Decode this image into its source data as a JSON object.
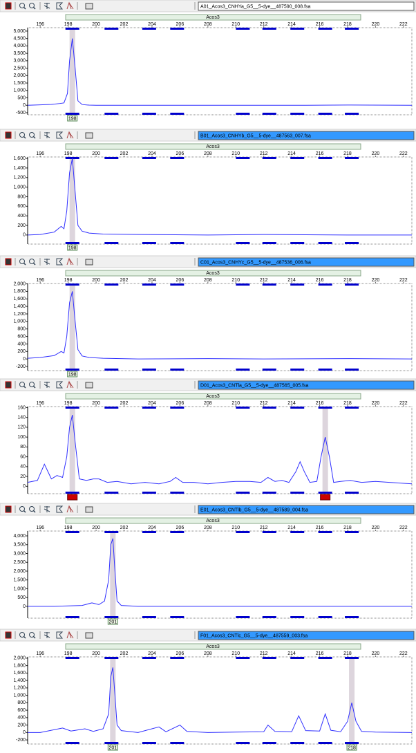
{
  "bins": [
    198.3,
    201.1,
    203.8,
    205.8,
    210.5,
    212.4,
    214.4,
    216.4,
    218.3
  ],
  "chart_data": [
    {
      "type": "line",
      "title": "A01_Acos3_CNHYa_G5__5-dye__487590_008.fsa",
      "selected": false,
      "marker": "Acos3",
      "color": "#2f2fff",
      "x": [
        195.1,
        196,
        196.8,
        197.4,
        197.7,
        197.95,
        198.1,
        198.3,
        198.5,
        198.7,
        199,
        199.5,
        200,
        205,
        210,
        215,
        218,
        222.6
      ],
      "values": [
        0,
        30,
        60,
        120,
        160,
        800,
        3000,
        4500,
        2500,
        300,
        50,
        10,
        0,
        0,
        0,
        0,
        20,
        0
      ],
      "xlim": [
        195.1,
        222.6
      ],
      "xticks": [
        196,
        198,
        200,
        202,
        204,
        206,
        208,
        210,
        212,
        214,
        216,
        218,
        220,
        222
      ],
      "ylim": [
        -640,
        5230
      ],
      "yticks": [
        {
          "value": 5000,
          "label": "5,000"
        },
        {
          "value": 4500,
          "label": "4,500"
        },
        {
          "value": 4000,
          "label": "4,000"
        },
        {
          "value": 3500,
          "label": "3,500"
        },
        {
          "value": 3000,
          "label": "3,000"
        },
        {
          "value": 2500,
          "label": "2,500"
        },
        {
          "value": 2000,
          "label": "2,000"
        },
        {
          "value": 1500,
          "label": "1,500"
        },
        {
          "value": 1000,
          "label": "1,000"
        },
        500,
        0,
        -500
      ],
      "alleles": [
        {
          "label": "198",
          "x": 198.3
        }
      ]
    },
    {
      "type": "line",
      "title": "B01_Acos3_CNHYb_G5__5-dye__487563_007.fsa",
      "selected": true,
      "marker": "Acos3",
      "color": "#2f2fff",
      "x": [
        195.1,
        196,
        197,
        197.5,
        197.7,
        197.9,
        198.1,
        198.3,
        198.5,
        198.7,
        199,
        199.5,
        200.5,
        203,
        208,
        212,
        218,
        222.6
      ],
      "values": [
        0,
        10,
        60,
        180,
        130,
        500,
        1300,
        1600,
        900,
        200,
        80,
        40,
        20,
        10,
        0,
        10,
        0,
        0
      ],
      "xlim": [
        195.1,
        222.6
      ],
      "xticks": [
        196,
        198,
        200,
        202,
        204,
        206,
        208,
        210,
        212,
        214,
        216,
        218,
        220,
        222
      ],
      "ylim": [
        -190,
        1630
      ],
      "yticks": [
        {
          "value": 1600,
          "label": "1,600"
        },
        {
          "value": 1400,
          "label": "1,400"
        },
        {
          "value": 1200,
          "label": "1,200"
        },
        {
          "value": 1000,
          "label": "1,000"
        },
        800,
        600,
        400,
        200,
        0
      ],
      "alleles": [
        {
          "label": "198",
          "x": 198.3
        }
      ]
    },
    {
      "type": "line",
      "title": "C01_Acos3_CNHYc_G5__5-dye__487536_006.fsa",
      "selected": true,
      "marker": "Acos3",
      "color": "#2f2fff",
      "x": [
        195.1,
        196,
        197,
        197.5,
        197.7,
        197.9,
        198.1,
        198.3,
        198.5,
        198.7,
        199,
        199.5,
        200.5,
        203,
        208,
        212,
        218,
        222.6
      ],
      "values": [
        20,
        40,
        90,
        200,
        160,
        600,
        1500,
        1800,
        1000,
        250,
        80,
        40,
        20,
        0,
        10,
        0,
        10,
        0
      ],
      "xlim": [
        195.1,
        222.6
      ],
      "xticks": [
        196,
        198,
        200,
        202,
        204,
        206,
        208,
        210,
        212,
        214,
        216,
        218,
        220,
        222
      ],
      "ylim": [
        -310,
        2010
      ],
      "yticks": [
        {
          "value": 2000,
          "label": "2,000"
        },
        {
          "value": 1800,
          "label": "1,800"
        },
        {
          "value": 1600,
          "label": "1,600"
        },
        {
          "value": 1400,
          "label": "1,400"
        },
        {
          "value": 1200,
          "label": "1,200"
        },
        {
          "value": 1000,
          "label": "1,000"
        },
        800,
        600,
        400,
        200,
        0,
        -200
      ],
      "alleles": [
        {
          "label": "198",
          "x": 198.3
        }
      ]
    },
    {
      "type": "line",
      "title": "D01_Acos3_CNTla_G5__5-dye__487565_005.fsa",
      "selected": true,
      "marker": "Acos3",
      "color": "#2f2fff",
      "x": [
        195.1,
        195.8,
        196.3,
        196.8,
        197.2,
        197.6,
        197.9,
        198.1,
        198.3,
        198.5,
        198.8,
        199.3,
        199.8,
        200.2,
        200.8,
        201.5,
        202.5,
        203.5,
        204.5,
        205.3,
        205.7,
        206.2,
        207,
        208,
        209,
        210,
        211,
        211.8,
        212.3,
        212.8,
        213.3,
        213.8,
        214.3,
        214.6,
        214.9,
        215.3,
        215.8,
        216.1,
        216.4,
        216.7,
        217,
        217.5,
        218.2,
        219,
        220,
        221,
        222.6
      ],
      "values": [
        8,
        12,
        45,
        15,
        22,
        18,
        60,
        120,
        145,
        90,
        15,
        12,
        15,
        15,
        8,
        10,
        5,
        8,
        5,
        10,
        18,
        8,
        8,
        5,
        8,
        10,
        10,
        8,
        18,
        10,
        12,
        8,
        30,
        50,
        30,
        8,
        10,
        60,
        100,
        60,
        8,
        10,
        12,
        8,
        10,
        8,
        5
      ],
      "xlim": [
        195.1,
        222.6
      ],
      "xticks": [
        196,
        198,
        200,
        202,
        204,
        206,
        208,
        210,
        212,
        214,
        216,
        218,
        220,
        222
      ],
      "ylim": [
        -15,
        162
      ],
      "yticks": [
        160,
        140,
        120,
        100,
        80,
        60,
        40,
        20,
        0
      ],
      "flagged_peaks": [
        198.3,
        216.4
      ]
    },
    {
      "type": "line",
      "title": "E01_Acos3_CNTlb_G5__5-dye__487589_004.fsa",
      "selected": true,
      "marker": "Acos3",
      "color": "#2f2fff",
      "x": [
        195.1,
        197,
        199,
        199.7,
        200.2,
        200.6,
        200.9,
        201.05,
        201.2,
        201.35,
        201.5,
        201.8,
        203,
        210,
        222.6
      ],
      "values": [
        0,
        0,
        50,
        200,
        100,
        300,
        1500,
        3500,
        3850,
        2000,
        300,
        50,
        0,
        0,
        0
      ],
      "xlim": [
        195.1,
        222.6
      ],
      "xticks": [
        196,
        198,
        200,
        202,
        204,
        206,
        208,
        210,
        212,
        214,
        216,
        218,
        220,
        222
      ],
      "ylim": [
        -670,
        4275
      ],
      "yticks": [
        {
          "value": 4000,
          "label": "4,000"
        },
        {
          "value": 3500,
          "label": "3,500"
        },
        {
          "value": 3000,
          "label": "3,000"
        },
        {
          "value": 2500,
          "label": "2,500"
        },
        {
          "value": 2000,
          "label": "2,000"
        },
        {
          "value": 1500,
          "label": "1,500"
        },
        {
          "value": 1000,
          "label": "1,000"
        },
        500,
        0
      ],
      "alleles": [
        {
          "label": "201",
          "x": 201.2
        }
      ]
    },
    {
      "type": "line",
      "title": "F01_Acos3_CNTlc_G5__5-dye__487559_003.fsa",
      "selected": true,
      "marker": "Acos3",
      "color": "#2f2fff",
      "x": [
        195.1,
        196,
        197.6,
        198.2,
        199.2,
        199.8,
        200.5,
        200.9,
        201.05,
        201.2,
        201.35,
        201.5,
        201.8,
        203,
        204.5,
        205,
        206,
        206.5,
        208,
        210,
        212,
        212.3,
        212.8,
        214,
        214.5,
        215,
        216,
        216.4,
        216.8,
        217.5,
        218,
        218.3,
        218.6,
        219,
        220,
        222.6
      ],
      "values": [
        0,
        0,
        120,
        40,
        100,
        30,
        100,
        500,
        1500,
        1750,
        1000,
        200,
        50,
        0,
        150,
        20,
        200,
        30,
        0,
        10,
        20,
        200,
        30,
        20,
        450,
        50,
        40,
        500,
        60,
        20,
        300,
        800,
        300,
        30,
        10,
        0
      ],
      "xlim": [
        195.1,
        222.6
      ],
      "xticks": [
        196,
        198,
        200,
        202,
        204,
        206,
        208,
        210,
        212,
        214,
        216,
        218,
        220,
        222
      ],
      "ylim": [
        -310,
        2035
      ],
      "yticks": [
        {
          "value": 2000,
          "label": "2,000"
        },
        {
          "value": 1800,
          "label": "1,800"
        },
        {
          "value": 1600,
          "label": "1,600"
        },
        {
          "value": 1400,
          "label": "1,400"
        },
        {
          "value": 1200,
          "label": "1,200"
        },
        {
          "value": 1000,
          "label": "1,000"
        },
        800,
        600,
        400,
        200,
        0,
        -200
      ],
      "alleles": [
        {
          "label": "201",
          "x": 201.2
        },
        {
          "label": "218",
          "x": 218.3
        }
      ]
    }
  ]
}
